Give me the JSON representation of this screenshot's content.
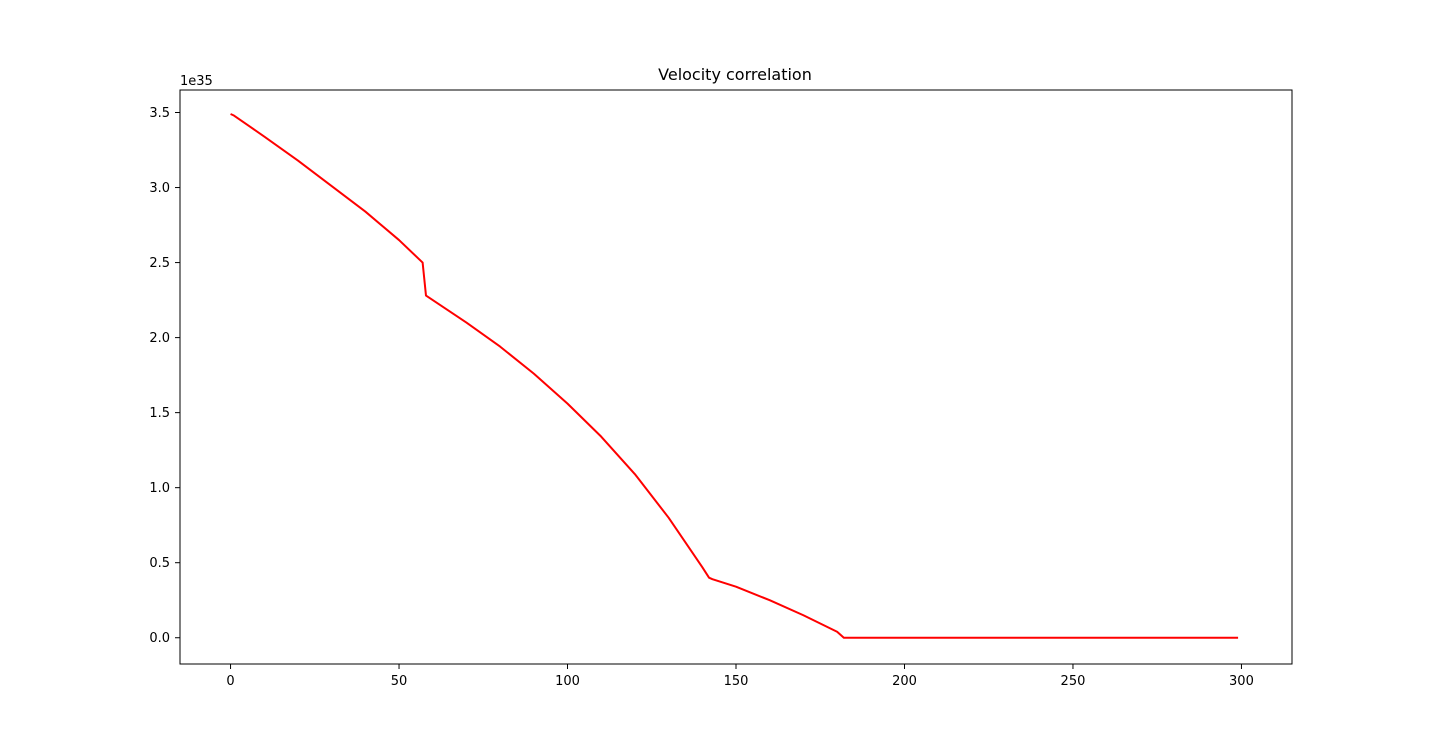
{
  "chart_data": {
    "type": "line",
    "title": "Velocity correlation",
    "xlabel": "",
    "ylabel": "",
    "y_offset_label": "1e35",
    "xlim": [
      -15,
      315
    ],
    "ylim": [
      -0.175,
      3.65
    ],
    "x_ticks": [
      0,
      50,
      100,
      150,
      200,
      250,
      300
    ],
    "x_tick_labels": [
      "0",
      "50",
      "100",
      "150",
      "200",
      "250",
      "300"
    ],
    "y_ticks": [
      0.0,
      0.5,
      1.0,
      1.5,
      2.0,
      2.5,
      3.0,
      3.5
    ],
    "y_tick_labels": [
      "0.0",
      "0.5",
      "1.0",
      "1.5",
      "2.0",
      "2.5",
      "3.0",
      "3.5"
    ],
    "grid": false,
    "series": [
      {
        "color": "#ff0000",
        "x": [
          0,
          1,
          10,
          20,
          30,
          40,
          50,
          57,
          58,
          70,
          80,
          90,
          100,
          110,
          120,
          130,
          140,
          142,
          143,
          150,
          160,
          170,
          180,
          182,
          183,
          200,
          220,
          250,
          280,
          299
        ],
        "y": [
          3.49,
          3.48,
          3.34,
          3.18,
          3.01,
          2.84,
          2.65,
          2.5,
          2.28,
          2.1,
          1.94,
          1.76,
          1.56,
          1.34,
          1.09,
          0.8,
          0.47,
          0.4,
          0.39,
          0.34,
          0.25,
          0.15,
          0.04,
          0.0,
          0.0,
          0.0,
          0.0,
          0.0,
          0.0,
          0.0
        ]
      }
    ]
  }
}
